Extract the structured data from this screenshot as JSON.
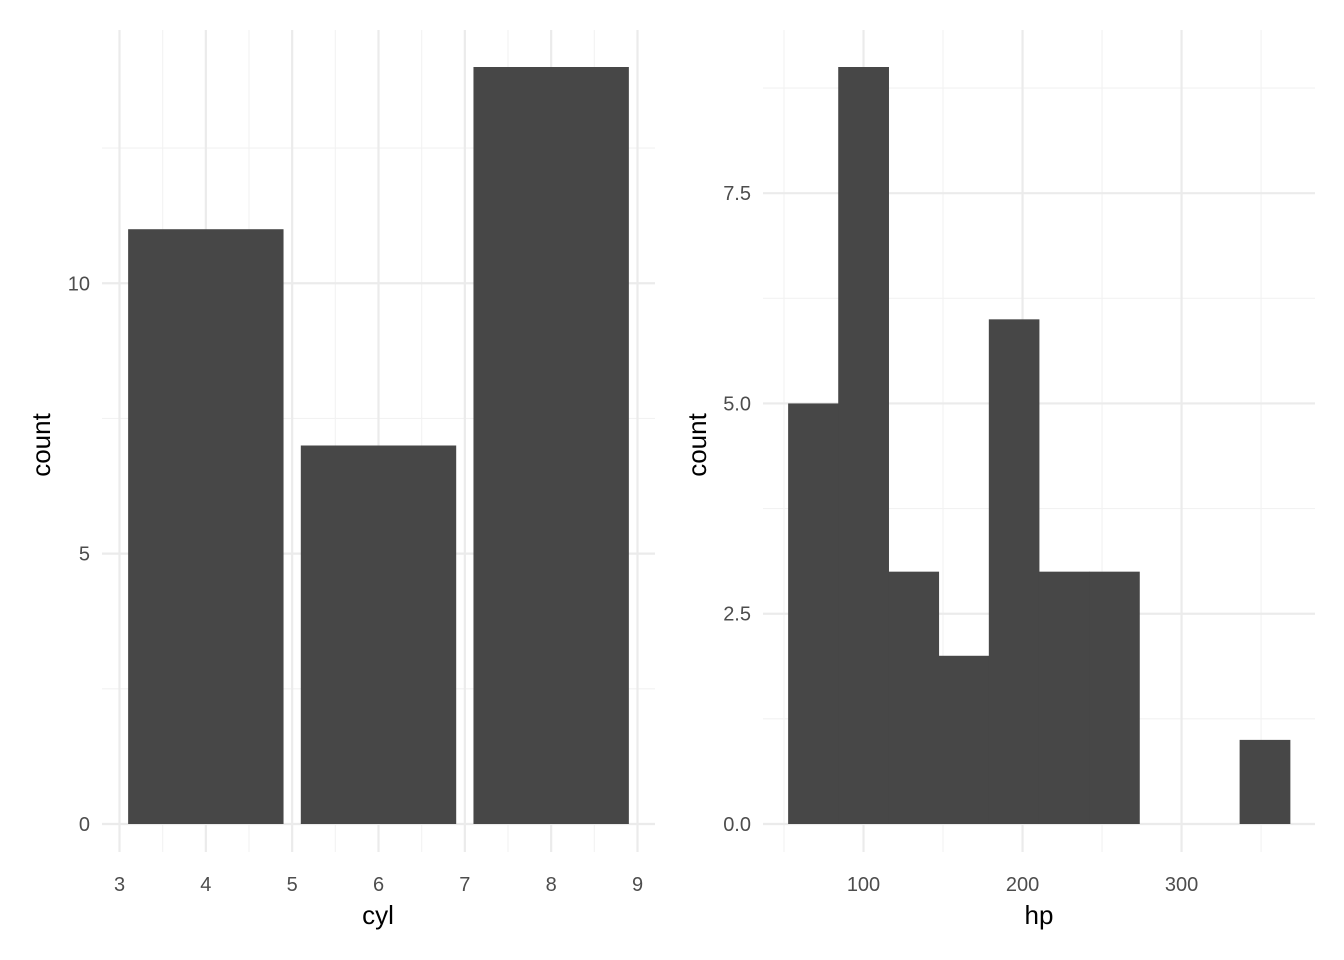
{
  "chart_data": [
    {
      "type": "bar",
      "xlabel": "cyl",
      "ylabel": "count",
      "categories": [
        4,
        6,
        8
      ],
      "values": [
        11,
        7,
        14
      ],
      "bar_width": 1.8,
      "xlim": [
        3,
        9
      ],
      "ylim": [
        0,
        14
      ],
      "x_ticks": [
        3,
        4,
        5,
        6,
        7,
        8,
        9
      ],
      "y_ticks": [
        0,
        5,
        10
      ],
      "y_minor_ticks": [
        2.5,
        7.5,
        12.5
      ],
      "grid": true,
      "legend": "none",
      "bar_color": "#474747"
    },
    {
      "type": "bar",
      "subtype": "histogram",
      "xlabel": "hp",
      "ylabel": "count",
      "bins": [
        {
          "x0": 52.6,
          "x1": 84.1,
          "count": 5
        },
        {
          "x0": 84.1,
          "x1": 115.7,
          "count": 9
        },
        {
          "x0": 115.7,
          "x1": 147.2,
          "count": 3
        },
        {
          "x0": 147.2,
          "x1": 178.8,
          "count": 2
        },
        {
          "x0": 178.8,
          "x1": 210.3,
          "count": 6
        },
        {
          "x0": 210.3,
          "x1": 241.9,
          "count": 3
        },
        {
          "x0": 241.9,
          "x1": 273.4,
          "count": 3
        },
        {
          "x0": 273.4,
          "x1": 305.0,
          "count": 0
        },
        {
          "x0": 305.0,
          "x1": 336.5,
          "count": 0
        },
        {
          "x0": 336.5,
          "x1": 368.1,
          "count": 1
        }
      ],
      "xlim": [
        36.8,
        383.9
      ],
      "ylim": [
        0,
        9
      ],
      "x_ticks": [
        100,
        200,
        300
      ],
      "x_tick_labels": [
        "100",
        "200",
        "300"
      ],
      "x_minor_ticks": [
        50,
        150,
        250,
        350
      ],
      "y_ticks": [
        0,
        2.5,
        5,
        7.5
      ],
      "y_tick_labels": [
        "0.0",
        "2.5",
        "5.0",
        "7.5"
      ],
      "y_minor_ticks": [
        1.25,
        3.75,
        6.25,
        8.75
      ],
      "grid": true,
      "legend": "none",
      "bar_color": "#474747"
    }
  ]
}
